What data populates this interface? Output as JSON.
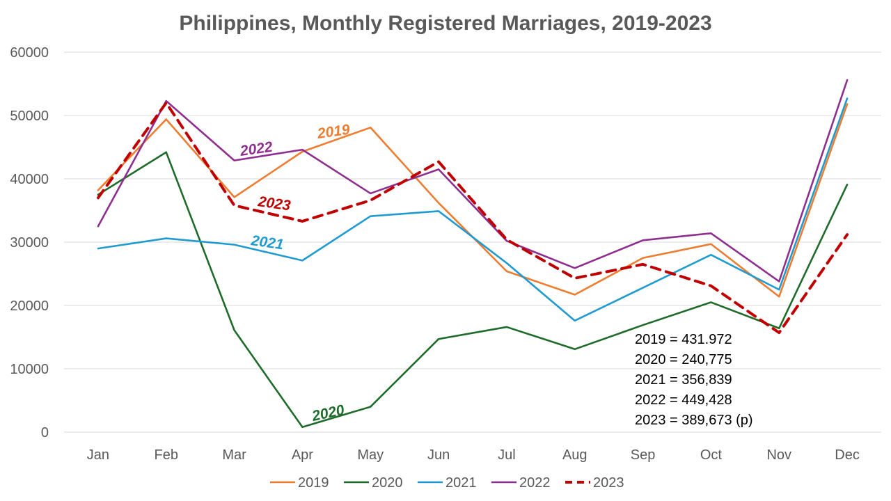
{
  "chart_data": {
    "type": "line",
    "title": "Philippines, Monthly Registered Marriages, 2019-2023",
    "categories": [
      "Jan",
      "Feb",
      "Mar",
      "Apr",
      "May",
      "Jun",
      "Jul",
      "Aug",
      "Sep",
      "Oct",
      "Nov",
      "Dec"
    ],
    "ylim": [
      0,
      60000
    ],
    "yticks": [
      "0",
      "10000",
      "20000",
      "30000",
      "40000",
      "50000",
      "60000"
    ],
    "grid": true,
    "legend_position": "bottom",
    "series": [
      {
        "name": "2019",
        "color": "#ed7d31",
        "dashed": false,
        "values": [
          38200,
          49400,
          37100,
          44300,
          48100,
          36200,
          25400,
          21700,
          27500,
          29700,
          21400,
          51800
        ]
      },
      {
        "name": "2020",
        "color": "#1e6b2a",
        "dashed": false,
        "values": [
          37500,
          44200,
          16100,
          800,
          4000,
          14700,
          16600,
          13100,
          16900,
          20500,
          16400,
          39100
        ]
      },
      {
        "name": "2021",
        "color": "#1f9bd1",
        "dashed": false,
        "values": [
          29000,
          30600,
          29600,
          27100,
          34100,
          34900,
          26700,
          17600,
          22800,
          28000,
          22500,
          52700
        ]
      },
      {
        "name": "2022",
        "color": "#8e2f8f",
        "dashed": false,
        "values": [
          32500,
          52300,
          42900,
          44600,
          37700,
          41500,
          30200,
          25900,
          30300,
          31400,
          23800,
          55600
        ]
      },
      {
        "name": "2023",
        "color": "#c00000",
        "dashed": true,
        "values": [
          37000,
          52000,
          35800,
          33300,
          36600,
          42700,
          30400,
          24300,
          26500,
          23100,
          15700,
          31200
        ]
      }
    ],
    "annotations": [
      {
        "text": "2019",
        "color": "#ed7d31",
        "near": "Apr-May"
      },
      {
        "text": "2020",
        "color": "#1e6b2a",
        "near": "Apr-May"
      },
      {
        "text": "2021",
        "color": "#1f9bd1",
        "near": "Mar-Apr"
      },
      {
        "text": "2022",
        "color": "#8e2f8f",
        "near": "Mar-Apr"
      },
      {
        "text": "2023",
        "color": "#c00000",
        "near": "Mar-Apr"
      }
    ],
    "totals": [
      "2019 = 431.972",
      "2020 = 240,775",
      "2021 = 356,839",
      "2022 = 449,428",
      "2023 = 389,673 (p)"
    ]
  }
}
